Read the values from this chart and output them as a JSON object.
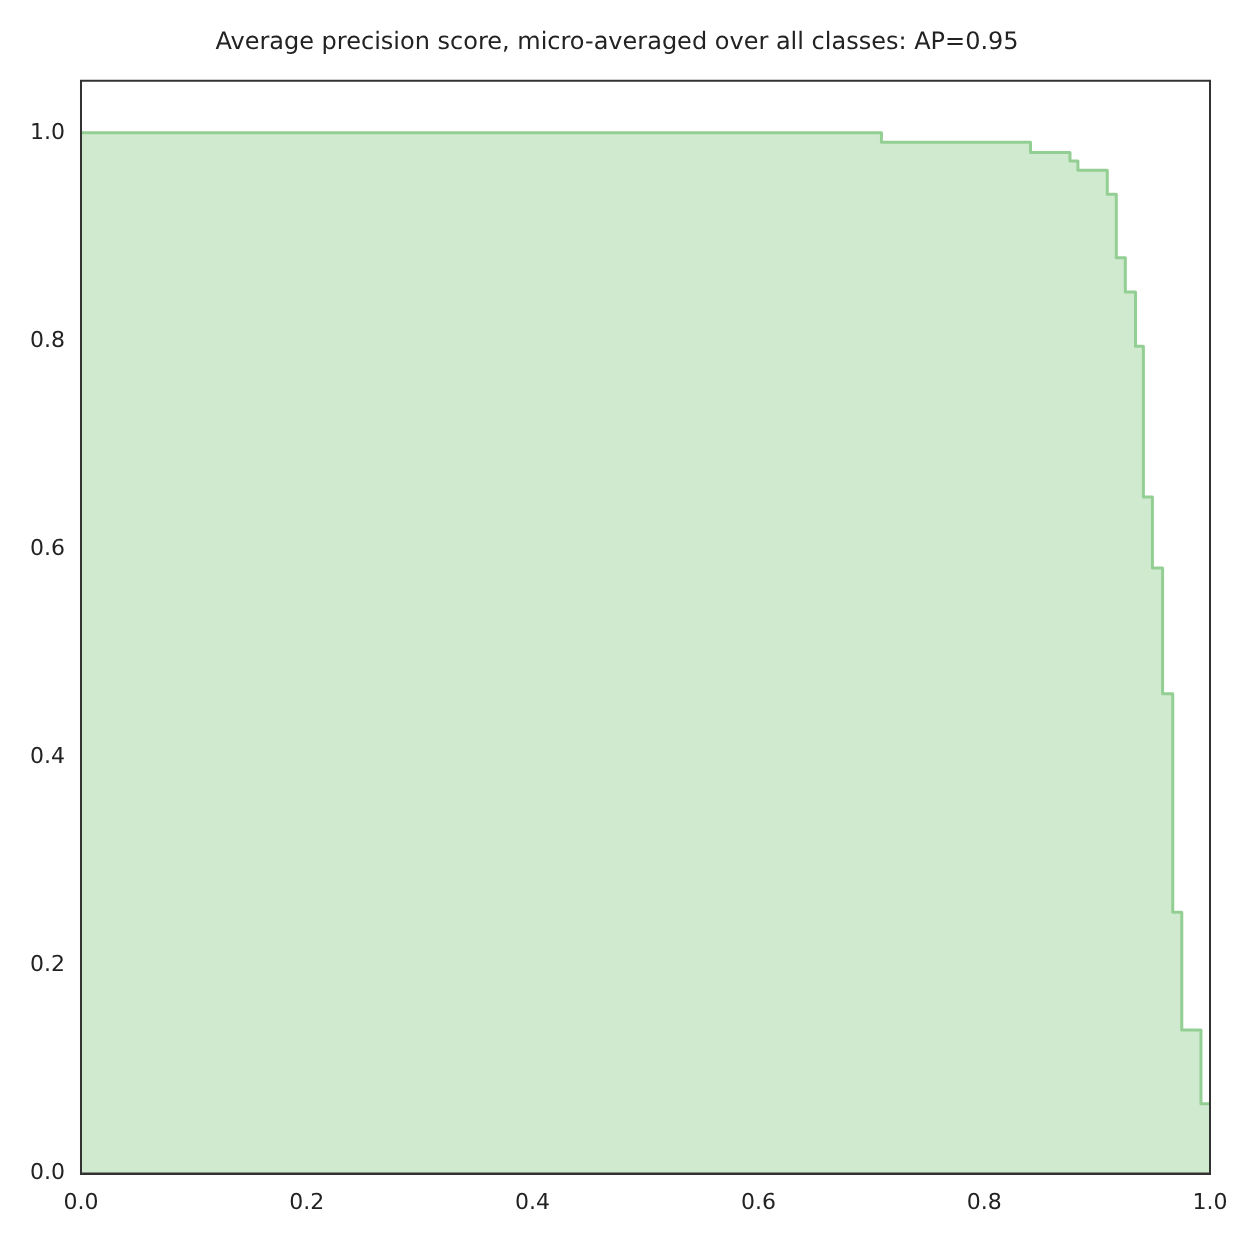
{
  "chart_data": {
    "type": "step",
    "title": "Average precision score, micro-averaged over all classes: AP=0.95",
    "x": [
      0,
      0.709,
      0.841,
      0.876,
      0.883,
      0.909,
      0.917,
      0.925,
      0.934,
      0.941,
      0.949,
      0.958,
      0.967,
      0.975,
      0.992,
      1.0
    ],
    "series": [
      {
        "color": "#93cf93",
        "values": [
          1.0,
          0.991,
          0.981,
          0.973,
          0.964,
          0.941,
          0.88,
          0.847,
          0.795,
          0.65,
          0.582,
          0.461,
          0.251,
          0.138,
          0.067,
          0.067
        ]
      }
    ],
    "xlim": [
      0,
      1
    ],
    "ylim": [
      0,
      1.05
    ],
    "xticks": [
      {
        "value": 0,
        "label": "0.0"
      },
      {
        "value": 0.2,
        "label": "0.2"
      },
      {
        "value": 0.4,
        "label": "0.4"
      },
      {
        "value": 0.6,
        "label": "0.6"
      },
      {
        "value": 0.8,
        "label": "0.8"
      },
      {
        "value": 1,
        "label": "1.0"
      }
    ],
    "yticks": [
      {
        "value": 0,
        "label": "0.0"
      },
      {
        "value": 0.2,
        "label": "0.2"
      },
      {
        "value": 0.4,
        "label": "0.4"
      },
      {
        "value": 0.6,
        "label": "0.6"
      },
      {
        "value": 0.8,
        "label": "0.8"
      },
      {
        "value": 1,
        "label": "1.0"
      }
    ],
    "grid": false,
    "legend": false
  }
}
